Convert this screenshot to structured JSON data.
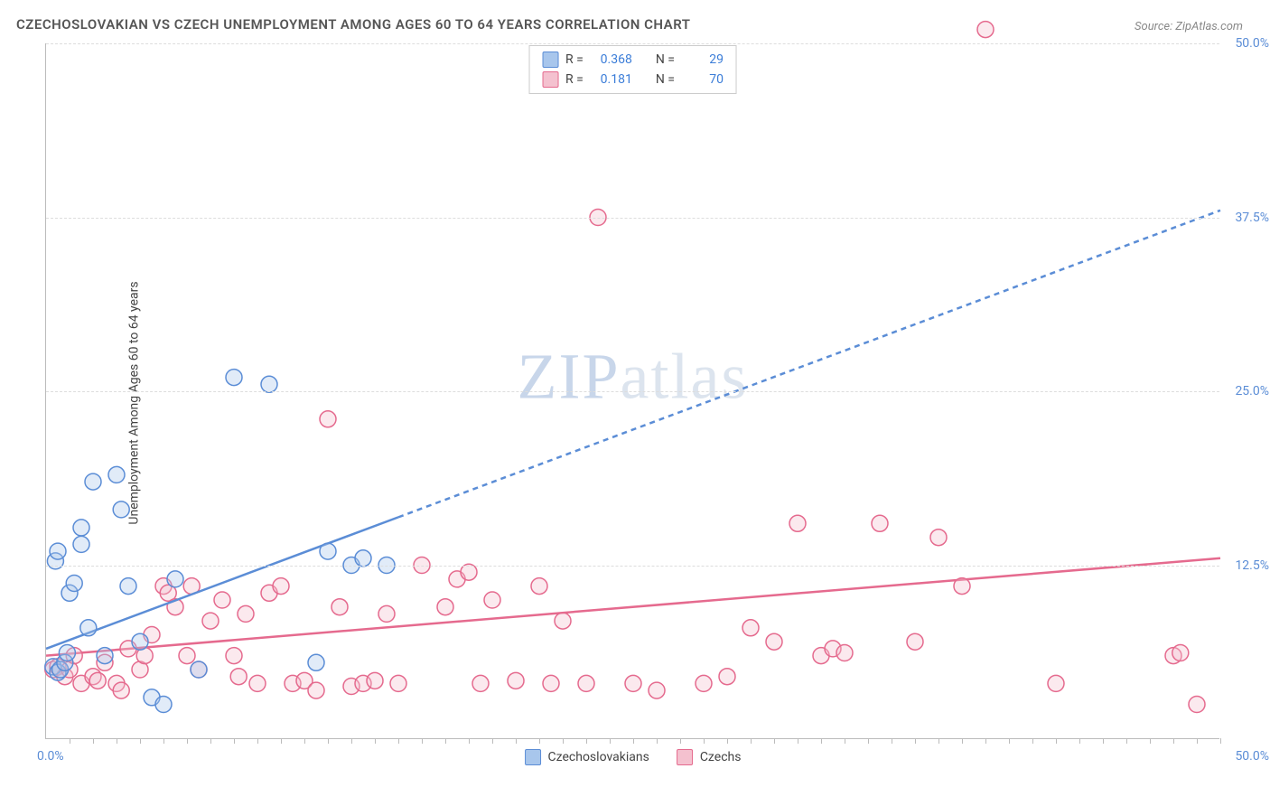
{
  "chart": {
    "type": "scatter",
    "title": "CZECHOSLOVAKIAN VS CZECH UNEMPLOYMENT AMONG AGES 60 TO 64 YEARS CORRELATION CHART",
    "source": "Source: ZipAtlas.com",
    "ylabel": "Unemployment Among Ages 60 to 64 years",
    "watermark_zip": "ZIP",
    "watermark_atlas": "atlas",
    "xlim": [
      0,
      50
    ],
    "ylim": [
      0,
      50
    ],
    "x_tick_min": "0.0%",
    "x_tick_max": "50.0%",
    "y_ticks": [
      {
        "v": 12.5,
        "label": "12.5%"
      },
      {
        "v": 25.0,
        "label": "25.0%"
      },
      {
        "v": 37.5,
        "label": "37.5%"
      },
      {
        "v": 50.0,
        "label": "50.0%"
      }
    ],
    "x_minor_ticks": [
      1,
      2,
      3,
      4,
      5,
      6,
      7,
      8,
      9,
      10,
      11,
      12,
      13,
      14,
      15,
      16,
      17,
      18,
      19,
      20,
      21,
      22,
      23,
      24,
      25,
      26,
      27,
      28,
      29,
      30,
      31,
      32,
      33,
      34,
      35,
      36,
      37,
      38,
      39,
      40,
      41,
      42,
      43,
      44,
      45,
      46,
      47,
      48,
      49,
      50
    ],
    "background_color": "#ffffff",
    "grid_color": "#dddddd",
    "axis_color": "#bbbbbb",
    "title_color": "#555555",
    "label_color": "#444444",
    "tick_label_color": "#5b8dd6",
    "title_fontsize": 15,
    "label_fontsize": 14,
    "tick_fontsize": 14,
    "marker_radius": 9,
    "marker_stroke_width": 1.5,
    "marker_fill_opacity": 0.35,
    "line_width": 2.5,
    "dash_pattern": "6,5",
    "series": {
      "czechoslovakians": {
        "label": "Czechoslovakians",
        "color_fill": "#a8c6ec",
        "color_stroke": "#5b8dd6",
        "R": "0.368",
        "N": "29",
        "trend": {
          "x1": 0,
          "y1": 6.5,
          "x2": 50,
          "y2": 38.0,
          "solid_until_x": 15
        },
        "points": [
          {
            "x": 0.3,
            "y": 5.2
          },
          {
            "x": 0.5,
            "y": 4.8
          },
          {
            "x": 0.6,
            "y": 5.0
          },
          {
            "x": 0.8,
            "y": 5.5
          },
          {
            "x": 0.4,
            "y": 12.8
          },
          {
            "x": 0.5,
            "y": 13.5
          },
          {
            "x": 1.0,
            "y": 10.5
          },
          {
            "x": 1.2,
            "y": 11.2
          },
          {
            "x": 1.5,
            "y": 15.2
          },
          {
            "x": 1.5,
            "y": 14.0
          },
          {
            "x": 1.8,
            "y": 8.0
          },
          {
            "x": 2.0,
            "y": 18.5
          },
          {
            "x": 2.5,
            "y": 6.0
          },
          {
            "x": 3.0,
            "y": 19.0
          },
          {
            "x": 3.2,
            "y": 16.5
          },
          {
            "x": 3.5,
            "y": 11.0
          },
          {
            "x": 4.0,
            "y": 7.0
          },
          {
            "x": 4.5,
            "y": 3.0
          },
          {
            "x": 5.0,
            "y": 2.5
          },
          {
            "x": 5.5,
            "y": 11.5
          },
          {
            "x": 6.5,
            "y": 5.0
          },
          {
            "x": 8.0,
            "y": 26.0
          },
          {
            "x": 9.5,
            "y": 25.5
          },
          {
            "x": 11.5,
            "y": 5.5
          },
          {
            "x": 12.0,
            "y": 13.5
          },
          {
            "x": 13.0,
            "y": 12.5
          },
          {
            "x": 13.5,
            "y": 13.0
          },
          {
            "x": 14.5,
            "y": 12.5
          },
          {
            "x": 0.9,
            "y": 6.2
          }
        ]
      },
      "czechs": {
        "label": "Czechs",
        "color_fill": "#f4c1cf",
        "color_stroke": "#e56a8e",
        "R": "0.181",
        "N": "70",
        "trend": {
          "x1": 0,
          "y1": 6.0,
          "x2": 50,
          "y2": 13.0,
          "solid_until_x": 50
        },
        "points": [
          {
            "x": 0.3,
            "y": 5.0
          },
          {
            "x": 0.5,
            "y": 5.2
          },
          {
            "x": 0.8,
            "y": 4.5
          },
          {
            "x": 1.0,
            "y": 5.0
          },
          {
            "x": 1.2,
            "y": 6.0
          },
          {
            "x": 1.5,
            "y": 4.0
          },
          {
            "x": 2.0,
            "y": 4.5
          },
          {
            "x": 2.2,
            "y": 4.2
          },
          {
            "x": 2.5,
            "y": 5.5
          },
          {
            "x": 3.0,
            "y": 4.0
          },
          {
            "x": 3.2,
            "y": 3.5
          },
          {
            "x": 3.5,
            "y": 6.5
          },
          {
            "x": 4.0,
            "y": 5.0
          },
          {
            "x": 4.2,
            "y": 6.0
          },
          {
            "x": 4.5,
            "y": 7.5
          },
          {
            "x": 5.0,
            "y": 11.0
          },
          {
            "x": 5.2,
            "y": 10.5
          },
          {
            "x": 5.5,
            "y": 9.5
          },
          {
            "x": 6.0,
            "y": 6.0
          },
          {
            "x": 6.2,
            "y": 11.0
          },
          {
            "x": 6.5,
            "y": 5.0
          },
          {
            "x": 7.0,
            "y": 8.5
          },
          {
            "x": 7.5,
            "y": 10.0
          },
          {
            "x": 8.0,
            "y": 6.0
          },
          {
            "x": 8.2,
            "y": 4.5
          },
          {
            "x": 8.5,
            "y": 9.0
          },
          {
            "x": 9.0,
            "y": 4.0
          },
          {
            "x": 9.5,
            "y": 10.5
          },
          {
            "x": 10.0,
            "y": 11.0
          },
          {
            "x": 10.5,
            "y": 4.0
          },
          {
            "x": 11.0,
            "y": 4.2
          },
          {
            "x": 11.5,
            "y": 3.5
          },
          {
            "x": 12.0,
            "y": 23.0
          },
          {
            "x": 12.5,
            "y": 9.5
          },
          {
            "x": 13.0,
            "y": 3.8
          },
          {
            "x": 13.5,
            "y": 4.0
          },
          {
            "x": 14.0,
            "y": 4.2
          },
          {
            "x": 14.5,
            "y": 9.0
          },
          {
            "x": 15.0,
            "y": 4.0
          },
          {
            "x": 16.0,
            "y": 12.5
          },
          {
            "x": 17.0,
            "y": 9.5
          },
          {
            "x": 17.5,
            "y": 11.5
          },
          {
            "x": 18.0,
            "y": 12.0
          },
          {
            "x": 18.5,
            "y": 4.0
          },
          {
            "x": 19.0,
            "y": 10.0
          },
          {
            "x": 20.0,
            "y": 4.2
          },
          {
            "x": 21.0,
            "y": 11.0
          },
          {
            "x": 21.5,
            "y": 4.0
          },
          {
            "x": 22.0,
            "y": 8.5
          },
          {
            "x": 23.0,
            "y": 4.0
          },
          {
            "x": 23.5,
            "y": 37.5
          },
          {
            "x": 25.0,
            "y": 4.0
          },
          {
            "x": 26.0,
            "y": 3.5
          },
          {
            "x": 28.0,
            "y": 4.0
          },
          {
            "x": 29.0,
            "y": 4.5
          },
          {
            "x": 30.0,
            "y": 8.0
          },
          {
            "x": 31.0,
            "y": 7.0
          },
          {
            "x": 32.0,
            "y": 15.5
          },
          {
            "x": 33.0,
            "y": 6.0
          },
          {
            "x": 33.5,
            "y": 6.5
          },
          {
            "x": 34.0,
            "y": 6.2
          },
          {
            "x": 35.5,
            "y": 15.5
          },
          {
            "x": 37.0,
            "y": 7.0
          },
          {
            "x": 38.0,
            "y": 14.5
          },
          {
            "x": 39.0,
            "y": 11.0
          },
          {
            "x": 40.0,
            "y": 51.0
          },
          {
            "x": 43.0,
            "y": 4.0
          },
          {
            "x": 48.0,
            "y": 6.0
          },
          {
            "x": 48.3,
            "y": 6.2
          },
          {
            "x": 49.0,
            "y": 2.5
          }
        ]
      }
    },
    "legend_top": {
      "r_prefix": "R =",
      "n_prefix": "N ="
    }
  }
}
